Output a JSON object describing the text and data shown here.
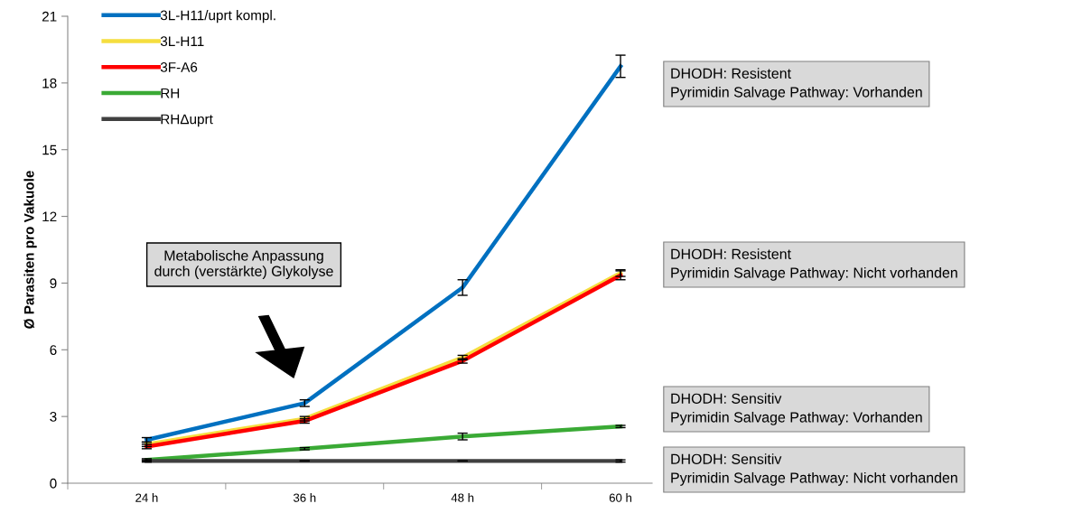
{
  "chart_data": {
    "type": "line",
    "ylabel": "Ø Parasiten pro Vakuole",
    "categories": [
      "24 h",
      "36 h",
      "48 h",
      "60 h"
    ],
    "series": [
      {
        "name": "3L-H11/uprt kompl.",
        "color": "#0070c0",
        "values": [
          1.95,
          3.6,
          8.8,
          18.75
        ],
        "errors": [
          0.1,
          0.15,
          0.35,
          0.5
        ]
      },
      {
        "name": "3L-H11",
        "color": "#f5de3f",
        "values": [
          1.75,
          2.9,
          5.65,
          9.45
        ],
        "errors": [
          0.1,
          0.1,
          0.1,
          0.15
        ]
      },
      {
        "name": "3F-A6",
        "color": "#ff0000",
        "values": [
          1.65,
          2.8,
          5.5,
          9.35
        ],
        "errors": [
          0.1,
          0.1,
          0.1,
          0.2
        ]
      },
      {
        "name": "RH",
        "color": "#3aaa35",
        "values": [
          1.05,
          1.55,
          2.1,
          2.55
        ],
        "errors": [
          0.05,
          0.05,
          0.15,
          0.05
        ]
      },
      {
        "name": "RHΔuprt",
        "color": "#404040",
        "values": [
          1.0,
          1.0,
          1.0,
          1.0
        ],
        "errors": [
          0.05,
          0.0,
          0.0,
          0.05
        ]
      }
    ],
    "ylim": [
      0,
      21
    ],
    "yticks": [
      0,
      3,
      6,
      9,
      12,
      15,
      18,
      21
    ],
    "grid": false,
    "legend": "top left",
    "marker": "none",
    "line_style": "solid",
    "annotations": [
      "Metabolische Anpassung\ndurch (verstärkte) Glykolyse",
      "DHODH: Resistent\nPyrimidin Salvage Pathway: Vorhanden",
      "DHODH: Resistent\nPyrimidin Salvage Pathway: Nicht vorhanden",
      "DHODH: Sensitiv\nPyrimidin Salvage Pathway: Vorhanden",
      "DHODH: Sensitiv\nPyrimidin Salvage Pathway: Nicht vorhanden"
    ]
  }
}
